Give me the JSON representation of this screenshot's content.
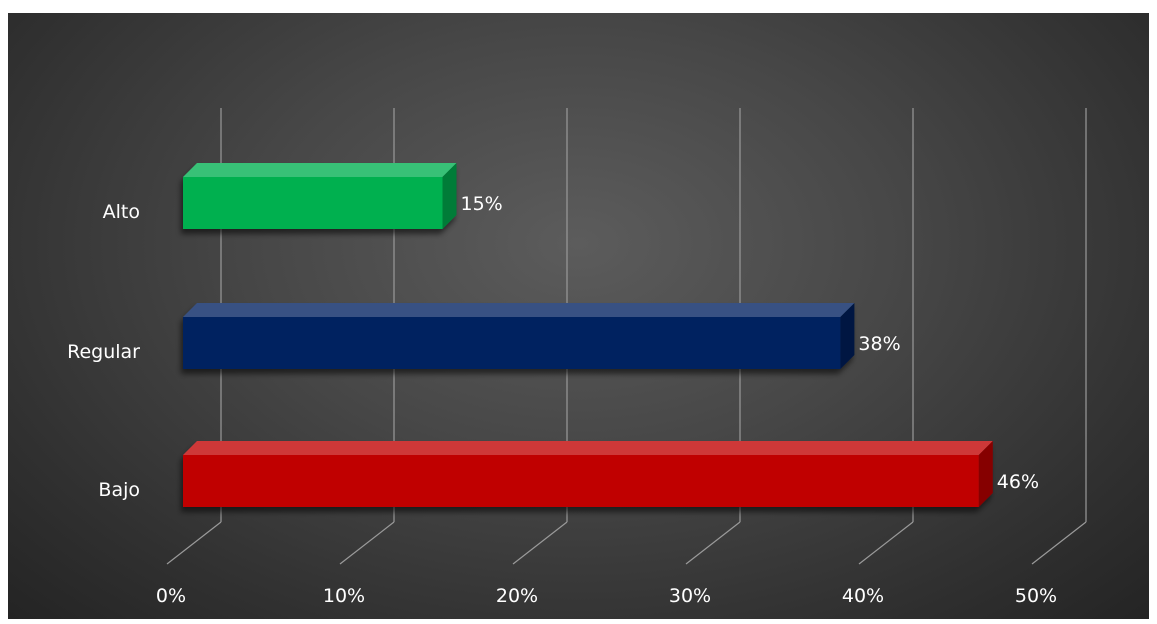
{
  "chart_data": {
    "type": "bar",
    "orientation": "horizontal",
    "style": "3d",
    "categories": [
      "Alto",
      "Regular",
      "Bajo"
    ],
    "values": [
      15,
      38,
      46
    ],
    "value_labels": [
      "15%",
      "38%",
      "46%"
    ],
    "colors": [
      "#00b050",
      "#002060",
      "#c00000"
    ],
    "xlim": [
      0,
      50
    ],
    "x_ticks": [
      0,
      10,
      20,
      30,
      40,
      50
    ],
    "x_tick_labels": [
      "0%",
      "10%",
      "20%",
      "30%",
      "40%",
      "50%"
    ],
    "grid": true,
    "legend": "none",
    "background": "#4a4a4a",
    "title": ""
  }
}
